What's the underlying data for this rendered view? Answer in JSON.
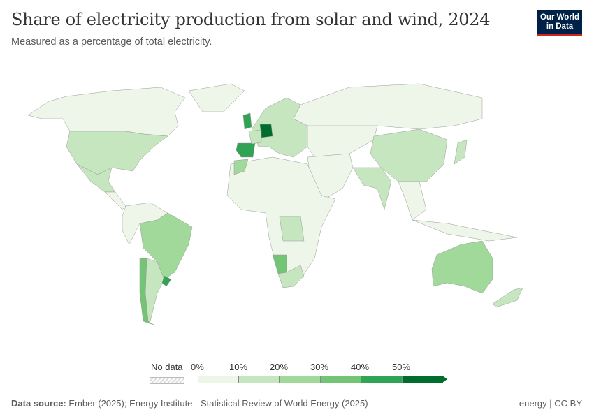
{
  "header": {
    "title": "Share of electricity production from solar and wind, 2024",
    "subtitle": "Measured as a percentage of total electricity.",
    "logo": "Our World in Data"
  },
  "legend": {
    "no_data_label": "No data",
    "ticks": [
      "0%",
      "10%",
      "20%",
      "30%",
      "40%",
      "50%"
    ],
    "bins": [
      {
        "range": "0-10%",
        "color": "#edf6e8"
      },
      {
        "range": "10-20%",
        "color": "#c6e6c0"
      },
      {
        "range": "20-30%",
        "color": "#a1d99b"
      },
      {
        "range": "30-40%",
        "color": "#74c476"
      },
      {
        "range": "40-50%",
        "color": "#31a354"
      },
      {
        "range": ">50%",
        "color": "#006d2c"
      }
    ]
  },
  "map_fills": [
    {
      "region": "Canada",
      "bin": "0-10%"
    },
    {
      "region": "United States",
      "bin": "10-20%"
    },
    {
      "region": "Mexico",
      "bin": "10-20%"
    },
    {
      "region": "Brazil",
      "bin": "20-30%"
    },
    {
      "region": "Chile",
      "bin": "30-40%"
    },
    {
      "region": "Uruguay",
      "bin": "40-50%"
    },
    {
      "region": "Argentina",
      "bin": "10-20%"
    },
    {
      "region": "Spain",
      "bin": "40-50%"
    },
    {
      "region": "Germany",
      "bin": ">50%"
    },
    {
      "region": "Denmark",
      "bin": ">50%"
    },
    {
      "region": "United Kingdom",
      "bin": "40-50%"
    },
    {
      "region": "Russia",
      "bin": "0-10%"
    },
    {
      "region": "China",
      "bin": "10-20%"
    },
    {
      "region": "India",
      "bin": "10-20%"
    },
    {
      "region": "Australia",
      "bin": "20-30%"
    },
    {
      "region": "Namibia",
      "bin": "30-40%"
    },
    {
      "region": "South Africa",
      "bin": "10-20%"
    },
    {
      "region": "Africa (most)",
      "bin": "0-10%"
    }
  ],
  "footer": {
    "source_label": "Data source:",
    "source": "Ember (2025); Energy Institute - Statistical Review of World Energy (2025)",
    "license": "energy | CC BY"
  }
}
